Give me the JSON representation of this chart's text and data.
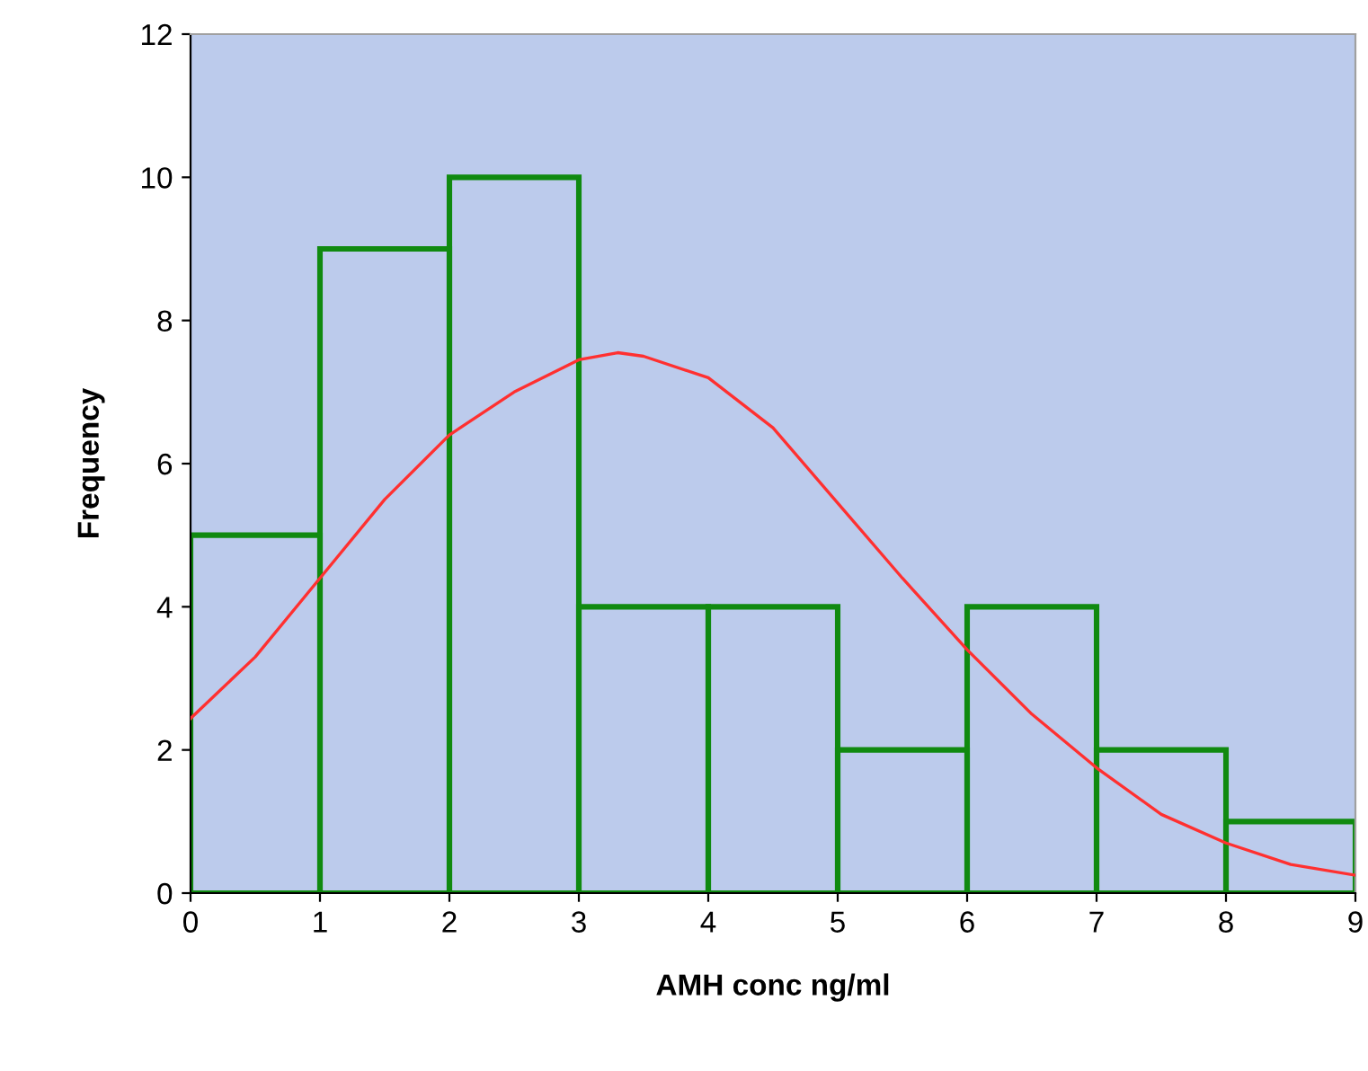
{
  "chart_data": {
    "type": "histogram",
    "xlabel": "AMH conc ng/ml",
    "ylabel": "Frequency",
    "bins": [
      0,
      1,
      2,
      3,
      4,
      5,
      6,
      7,
      8,
      9
    ],
    "values": [
      5,
      9,
      10,
      4,
      4,
      2,
      4,
      2,
      1
    ],
    "color": "#108a10",
    "series": [
      {
        "type": "line",
        "color": "#ff3030",
        "x": [
          0,
          0.5,
          1,
          1.5,
          2,
          2.5,
          3,
          3.3,
          3.5,
          4,
          4.5,
          5,
          5.5,
          6,
          6.5,
          7,
          7.5,
          8,
          8.5,
          9
        ],
        "values": [
          2.44,
          3.3,
          4.4,
          5.5,
          6.4,
          7.0,
          7.45,
          7.55,
          7.5,
          7.2,
          6.5,
          5.45,
          4.4,
          3.4,
          2.5,
          1.75,
          1.1,
          0.7,
          0.4,
          0.25
        ]
      }
    ],
    "xlim": [
      0,
      9
    ],
    "ylim": [
      0,
      12
    ],
    "xticks": [
      0,
      1,
      2,
      3,
      4,
      5,
      6,
      7,
      8,
      9
    ],
    "yticks": [
      0,
      2,
      4,
      6,
      8,
      10,
      12
    ],
    "grid": false,
    "legend": false,
    "marker": "none",
    "line_style": "solid"
  }
}
